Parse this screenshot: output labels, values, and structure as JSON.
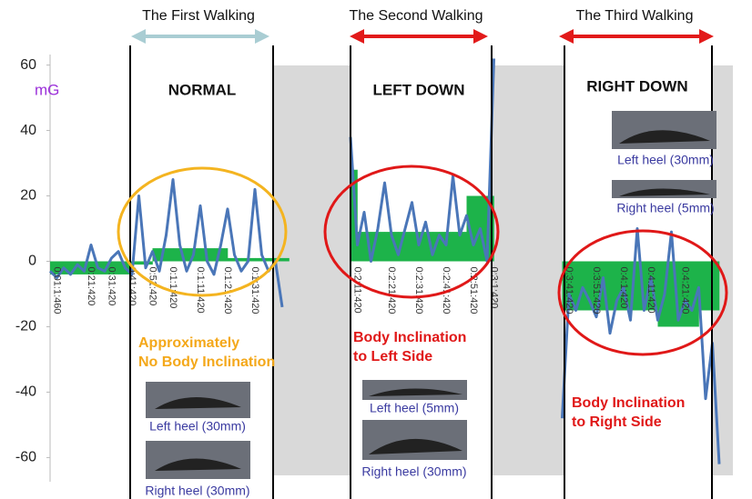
{
  "chart_data": {
    "type": "line",
    "y_unit": "mG",
    "ylim": [
      -66,
      66
    ],
    "yticks": [
      -60,
      -40,
      -20,
      0,
      20,
      40,
      60
    ],
    "line_color": "#4a76b8",
    "bar_color": "#1db34a",
    "x": [
      null,
      "0:01:1:460",
      null,
      null,
      null,
      null,
      "0:21:420",
      null,
      null,
      "0:31:420",
      null,
      null,
      "0:41:420",
      null,
      null,
      "0:51:420",
      null,
      null,
      "0:1:1:420",
      null,
      null,
      null,
      "0:1:11:420",
      null,
      null,
      null,
      "0:1:21:420",
      null,
      null,
      null,
      "0:1:31:420",
      null,
      null,
      null,
      null,
      null,
      null,
      null,
      null,
      null,
      null,
      null,
      null,
      null,
      null,
      "0:2:11:420",
      null,
      null,
      null,
      null,
      "0:2:21:420",
      null,
      null,
      null,
      "0:2:31:420",
      null,
      null,
      null,
      "0:2:41:420",
      null,
      null,
      null,
      "0:2:51:420",
      null,
      null,
      "0:3:1:420",
      null,
      null,
      null,
      null,
      null,
      null,
      null,
      null,
      null,
      null,
      "0:3:41:420",
      null,
      null,
      null,
      "0:3:51:420",
      null,
      null,
      null,
      "0:4:1:420",
      null,
      null,
      null,
      "0:4:11:420",
      null,
      null,
      null,
      null,
      "0:4:21:420",
      null,
      null,
      null,
      null,
      null,
      null,
      null
    ],
    "values": [
      -3,
      -5,
      -2,
      -4,
      -1,
      -3,
      5,
      -2,
      -3,
      1,
      3,
      -2,
      -4,
      20,
      -2,
      3,
      -3,
      8,
      25,
      5,
      -3,
      2,
      17,
      0,
      -4,
      5,
      16,
      2,
      -3,
      0,
      22,
      2,
      -3,
      0,
      -14,
      null,
      null,
      null,
      null,
      null,
      null,
      null,
      null,
      null,
      38,
      5,
      15,
      0,
      10,
      24,
      8,
      2,
      10,
      18,
      5,
      12,
      2,
      8,
      5,
      26,
      8,
      14,
      5,
      10,
      0,
      62,
      null,
      null,
      null,
      null,
      null,
      null,
      null,
      null,
      null,
      -48,
      -10,
      -15,
      -8,
      -12,
      -17,
      -5,
      -22,
      -12,
      -8,
      -18,
      10,
      -15,
      -5,
      -18,
      -10,
      9,
      -18,
      -12,
      -15,
      -8,
      -42,
      -25,
      -62,
      null,
      null
    ],
    "bar_values": [
      -4,
      -4,
      -4,
      -4,
      -4,
      -4,
      -4,
      -4,
      -4,
      -4,
      -4,
      -4,
      -1,
      -1,
      -1,
      4,
      4,
      4,
      4,
      4,
      4,
      4,
      4,
      4,
      4,
      4,
      1,
      1,
      1,
      1,
      1,
      1,
      1,
      1,
      1,
      null,
      null,
      null,
      null,
      null,
      null,
      null,
      null,
      null,
      28,
      9,
      9,
      9,
      9,
      9,
      9,
      9,
      9,
      9,
      9,
      9,
      9,
      9,
      9,
      9,
      9,
      20,
      20,
      20,
      20,
      null,
      null,
      null,
      null,
      null,
      null,
      null,
      null,
      null,
      null,
      -15,
      -15,
      -15,
      -15,
      -15,
      -15,
      -15,
      -15,
      -15,
      -15,
      -15,
      -15,
      -15,
      -15,
      -20,
      -20,
      -20,
      -20,
      -20,
      -20,
      -15,
      -15,
      -15,
      null,
      null,
      null
    ],
    "sections": [
      {
        "walking": "The First Walking",
        "mode": "NORMAL",
        "note": [
          "Approximately",
          "No Body Inclination"
        ],
        "captions": [
          "Left heel (30mm)",
          "Right heel (30mm)"
        ]
      },
      {
        "walking": "The Second Walking",
        "mode": "LEFT DOWN",
        "note": [
          "Body Inclination",
          "to Left Side"
        ],
        "captions": [
          "Left heel (5mm)",
          "Right heel (30mm)"
        ]
      },
      {
        "walking": "The Third Walking",
        "mode": "RIGHT DOWN",
        "note": [
          "Body Inclination",
          "to Right Side"
        ],
        "captions": [
          "Left heel (30mm)",
          "Right heel (5mm)"
        ]
      }
    ]
  }
}
